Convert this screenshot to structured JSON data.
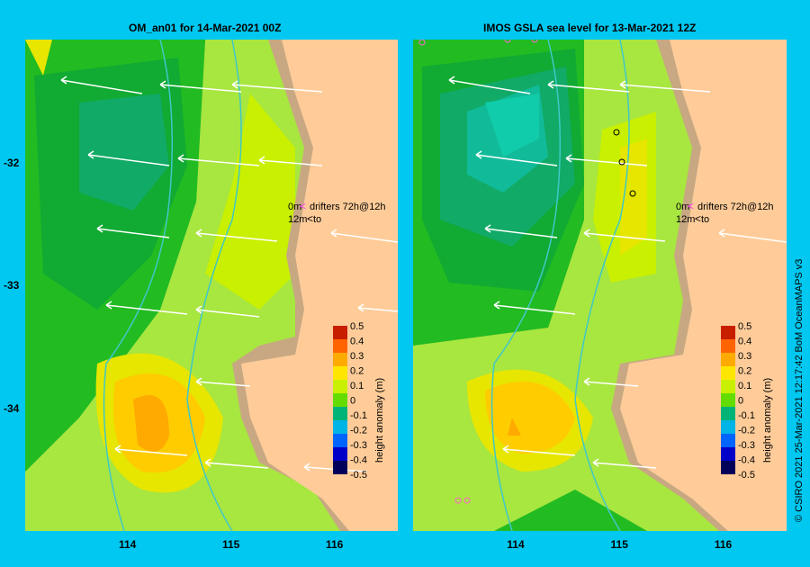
{
  "chart_data": [
    {
      "type": "heatmap",
      "title": "OM_an01  for 14-Mar-2021 00Z",
      "x_ticks": [
        114,
        115,
        116
      ],
      "y_ticks": [
        -32,
        -33,
        -34
      ],
      "xlim": [
        113.0,
        116.6
      ],
      "ylim": [
        -35.0,
        -31.0
      ],
      "legend": {
        "drifter_label": "drifters 72h@12h",
        "drifter_0m": "0m",
        "drifter_12m": "12m",
        "to_label": "to"
      },
      "colorbar": {
        "label": "height anomaly (m)",
        "ticks": [
          "0.5",
          "0.4",
          "0.3",
          "0.2",
          "0.1",
          "0",
          "-0.1",
          "-0.2",
          "-0.3",
          "-0.4",
          "-0.5"
        ],
        "range": [
          -0.5,
          0.5
        ]
      }
    },
    {
      "type": "heatmap",
      "title": "IMOS GSLA sea level  for 13-Mar-2021 12Z",
      "x_ticks": [
        114,
        115,
        116
      ],
      "y_ticks": [],
      "xlim": [
        113.0,
        116.6
      ],
      "ylim": [
        -35.0,
        -31.0
      ],
      "legend": {
        "drifter_label": "drifters 72h@12h",
        "drifter_0m": "0m",
        "drifter_12m": "12m",
        "to_label": "to"
      },
      "colorbar": {
        "label": "height anomaly (m)",
        "ticks": [
          "0.5",
          "0.4",
          "0.3",
          "0.2",
          "0.1",
          "0",
          "-0.1",
          "-0.2",
          "-0.3",
          "-0.4",
          "-0.5"
        ],
        "range": [
          -0.5,
          0.5
        ]
      }
    }
  ],
  "credit": "© CSIRO 2021   25-Mar-2021 12:17:42 BoM OceanMAPS v3",
  "colors": {
    "background": "#00c8f0",
    "land": "#ffcc99",
    "shelf": "#c8a882",
    "contour": "#40c8c8"
  }
}
